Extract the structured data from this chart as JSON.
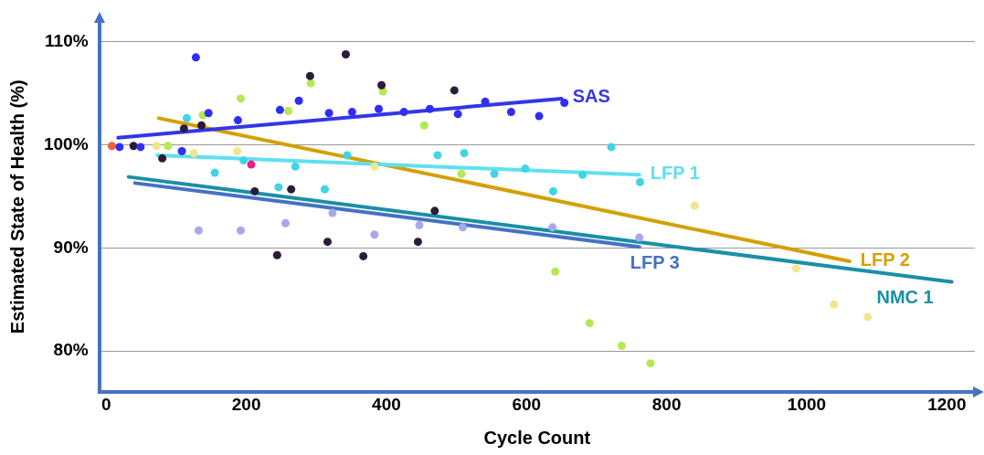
{
  "chart_data": {
    "type": "scatter",
    "xlabel": "Cycle Count",
    "ylabel": "Estimated State of Health (%)",
    "xlim": [
      -10,
      1240
    ],
    "ylim": [
      76,
      112
    ],
    "xticks": [
      0,
      200,
      400,
      600,
      800,
      1000,
      1200
    ],
    "yticks": [
      {
        "value": 80,
        "label": "80%"
      },
      {
        "value": 90,
        "label": "90%"
      },
      {
        "value": 100,
        "label": "100%"
      },
      {
        "value": 110,
        "label": "110%"
      }
    ],
    "grid": "y",
    "legend": false,
    "marker": "circle",
    "series": [
      {
        "color": "#2e2ef5",
        "x": [
          19,
          49,
          108,
          128,
          146,
          188,
          248,
          275,
          318,
          351,
          389,
          425,
          462,
          502,
          541,
          578,
          618,
          654
        ],
        "values": [
          99.8,
          99.8,
          99.4,
          108.5,
          103.1,
          102.4,
          103.4,
          104.3,
          103.1,
          103.2,
          103.5,
          103.2,
          103.5,
          103.0,
          104.2,
          103.2,
          102.8,
          104.1
        ]
      },
      {
        "color": "#2d1b3a",
        "x": [
          39,
          80,
          111,
          136,
          212,
          264,
          291,
          342,
          393,
          497,
          469,
          244,
          316,
          367,
          445
        ],
        "values": [
          99.9,
          98.7,
          101.6,
          101.9,
          95.5,
          95.7,
          106.7,
          108.8,
          105.8,
          105.3,
          93.6,
          89.3,
          90.6,
          89.2,
          90.6
        ]
      },
      {
        "color": "#b5e853",
        "x": [
          88,
          138,
          192,
          260,
          292,
          395,
          454,
          507,
          641,
          690,
          736,
          777
        ],
        "values": [
          99.9,
          102.9,
          104.5,
          103.3,
          106.0,
          105.2,
          101.9,
          97.2,
          87.7,
          82.7,
          80.5,
          78.8
        ]
      },
      {
        "color": "#40d4e4",
        "x": [
          115,
          155,
          196,
          246,
          270,
          312,
          344,
          473,
          511,
          554,
          598,
          638,
          680,
          721,
          762
        ],
        "values": [
          102.6,
          97.3,
          98.5,
          95.9,
          97.9,
          95.7,
          99.0,
          99.0,
          99.2,
          97.2,
          97.7,
          95.5,
          97.1,
          99.8,
          96.4
        ]
      },
      {
        "color": "#a8a8ec",
        "x": [
          132,
          192,
          256,
          323,
          383,
          447,
          509,
          637,
          761
        ],
        "values": [
          91.7,
          91.7,
          92.4,
          93.4,
          91.3,
          92.2,
          92.0,
          92.0,
          91.0
        ]
      },
      {
        "color": "#f0e68c",
        "x": [
          72,
          125,
          187,
          383,
          840,
          985,
          1039,
          1087
        ],
        "values": [
          99.9,
          99.2,
          99.4,
          97.9,
          94.1,
          88.0,
          84.5,
          83.3
        ]
      },
      {
        "color": "#f02080",
        "x": [
          207
        ],
        "values": [
          98.1
        ]
      },
      {
        "color": "#f06040",
        "x": [
          8
        ],
        "values": [
          99.9
        ]
      },
      {
        "type": "line",
        "marker": "none",
        "name": "SAS",
        "color": "#3535e8",
        "x": [
          17,
          650
        ],
        "values": [
          100.7,
          104.5
        ]
      },
      {
        "type": "line",
        "marker": "none",
        "name": "LFP 1",
        "color": "#5fe0f0",
        "x": [
          73,
          761
        ],
        "values": [
          99.0,
          97.1
        ]
      },
      {
        "type": "line",
        "marker": "none",
        "name": "LFP 2",
        "color": "#d4a000",
        "x": [
          75,
          1061
        ],
        "values": [
          102.6,
          88.7
        ]
      },
      {
        "type": "line",
        "marker": "none",
        "name": "LFP 3",
        "color": "#4472c4",
        "x": [
          41,
          761
        ],
        "values": [
          96.3,
          90.1
        ]
      },
      {
        "type": "line",
        "marker": "none",
        "name": "NMC 1",
        "color": "#1a8fa8",
        "x": [
          32,
          1207
        ],
        "values": [
          96.9,
          86.7
        ]
      }
    ]
  }
}
